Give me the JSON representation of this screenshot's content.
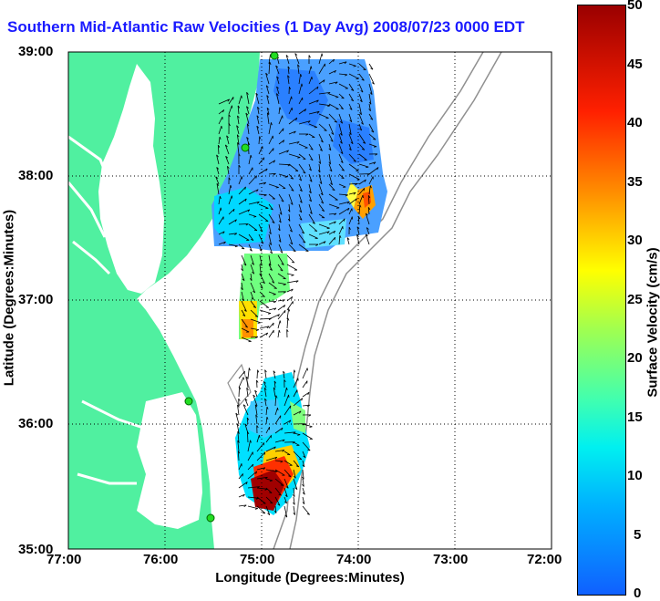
{
  "map": {
    "title": "Southern Mid-Atlantic Raw Velocities (1 Day Avg) 2008/07/23 0000 EDT",
    "xlabel": "Longitude (Degrees:Minutes)",
    "ylabel": "Latitude (Degrees:Minutes)",
    "x_ticks": [
      "77:00",
      "76:00",
      "75:00",
      "74:00",
      "73:00",
      "72:00"
    ],
    "y_ticks": [
      "39:00",
      "38:00",
      "37:00",
      "36:00",
      "35:00"
    ],
    "land_color": "#50f0a0",
    "contour_color": "#909090",
    "site_marker_color": "#22dd22"
  },
  "colorbar": {
    "label": "Surface Velocity (cm/s)",
    "ticks": [
      "50",
      "45",
      "40",
      "35",
      "30",
      "25",
      "20",
      "15",
      "10",
      "5",
      "0"
    ],
    "range": [
      0,
      50
    ]
  }
}
